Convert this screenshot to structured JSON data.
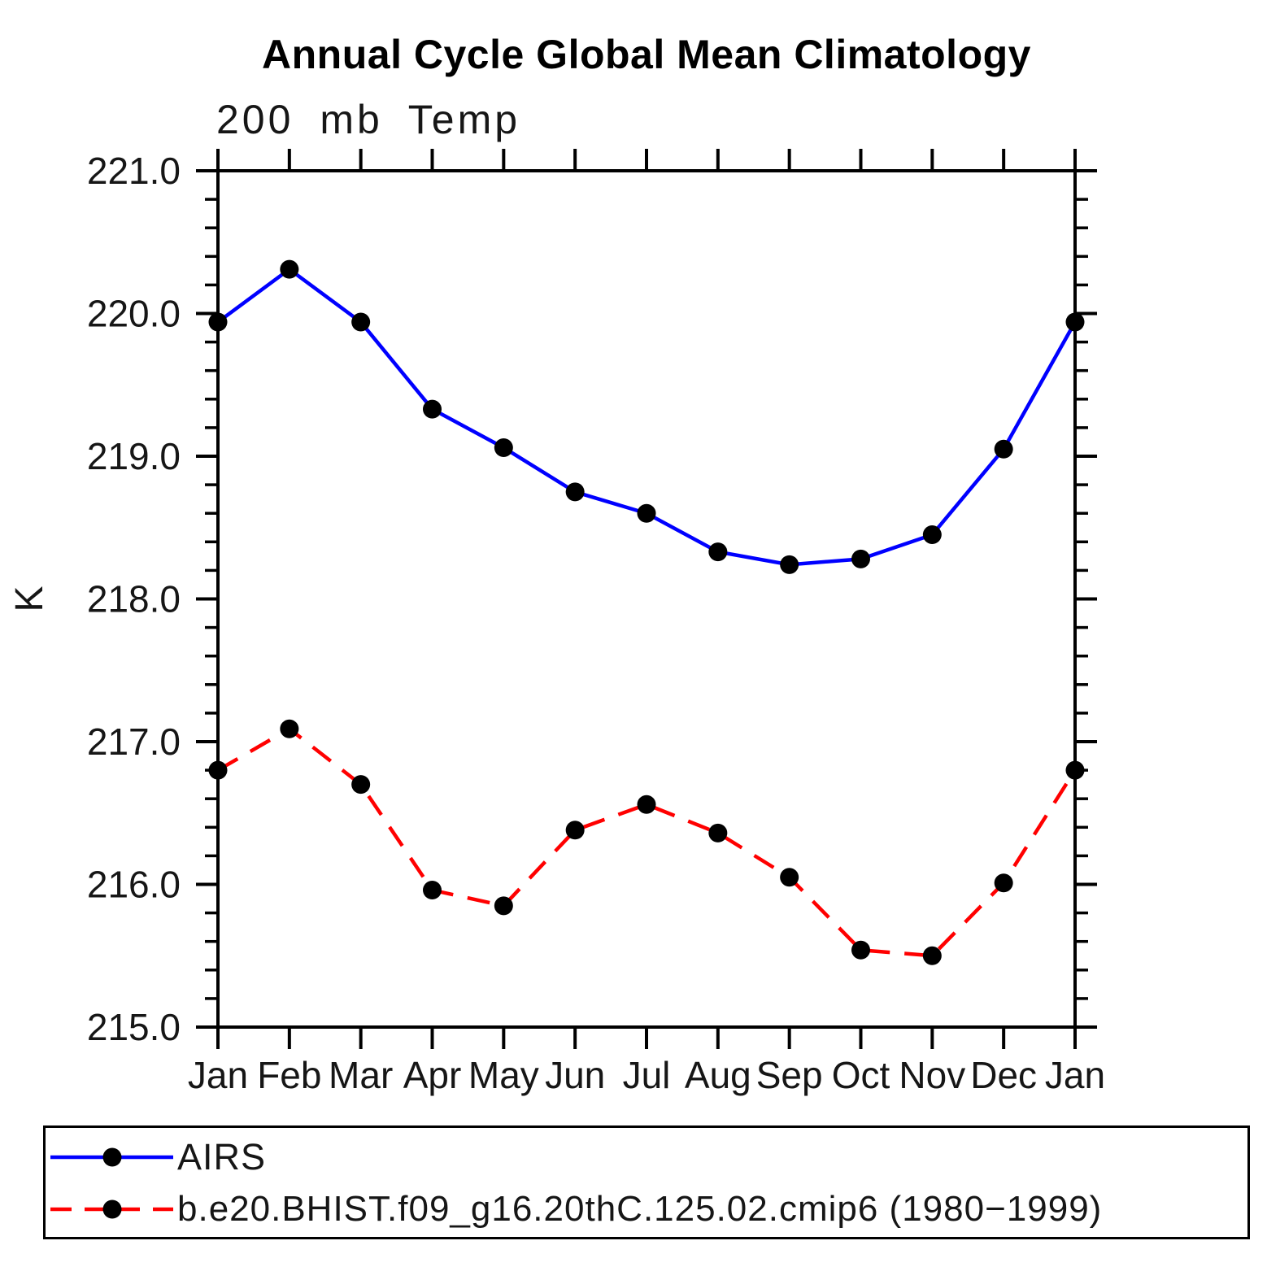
{
  "chart": {
    "title": "Annual Cycle Global Mean Climatology",
    "subtitle": "200 mb Temp",
    "y_axis_label": "K"
  },
  "chart_data": {
    "type": "line",
    "title": "Annual Cycle Global Mean Climatology",
    "subtitle": "200 mb Temp",
    "xlabel": "",
    "ylabel": "K",
    "categories": [
      "Jan",
      "Feb",
      "Mar",
      "Apr",
      "May",
      "Jun",
      "Jul",
      "Aug",
      "Sep",
      "Oct",
      "Nov",
      "Dec",
      "Jan"
    ],
    "ylim": [
      215.0,
      221.0
    ],
    "y_major_tick_step": 1.0,
    "y_minor_tick_step": 0.2,
    "y_tick_labels": [
      "215.0",
      "216.0",
      "217.0",
      "218.0",
      "219.0",
      "220.0",
      "221.0"
    ],
    "grid": false,
    "legend_position": "bottom",
    "series": [
      {
        "name": "AIRS",
        "color": "#0000ff",
        "line_style": "solid",
        "marker": "circle",
        "marker_color": "#000000",
        "values": [
          219.94,
          220.31,
          219.94,
          219.33,
          219.06,
          218.75,
          218.6,
          218.33,
          218.24,
          218.28,
          218.45,
          219.05,
          219.94
        ]
      },
      {
        "name": "b.e20.BHIST.f09_g16.20thC.125.02.cmip6 (1980−1999)",
        "color": "#ff0000",
        "line_style": "dashed",
        "marker": "circle",
        "marker_color": "#000000",
        "values": [
          216.8,
          217.09,
          216.7,
          215.96,
          215.85,
          216.38,
          216.56,
          216.36,
          216.05,
          215.54,
          215.5,
          216.01,
          216.8
        ]
      }
    ]
  }
}
